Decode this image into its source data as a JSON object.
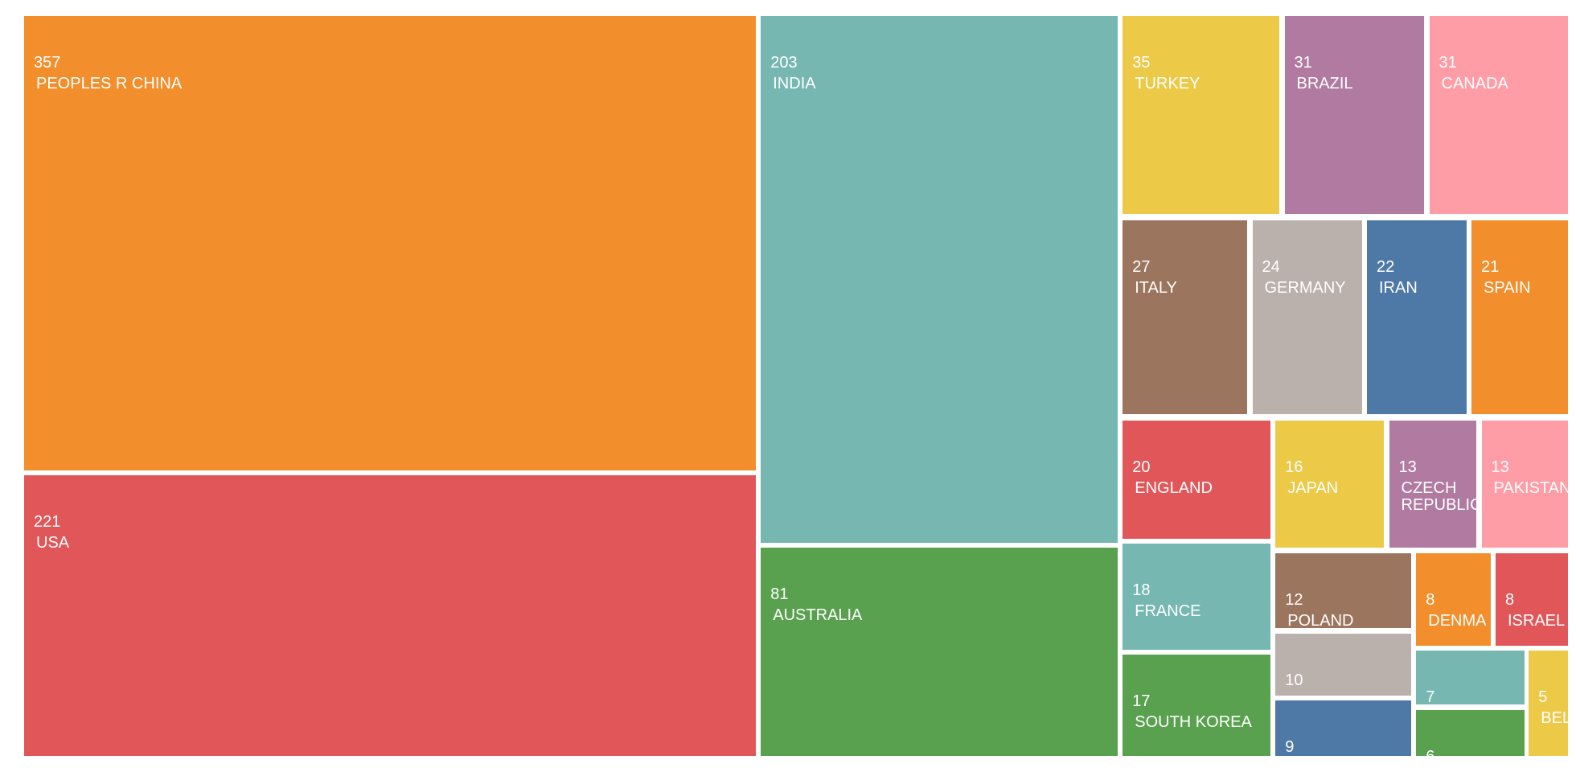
{
  "chart_data": {
    "type": "treemap",
    "categories": [
      "PEOPLES R CHINA",
      "USA",
      "INDIA",
      "AUSTRALIA",
      "TURKEY",
      "BRAZIL",
      "CANADA",
      "ITALY",
      "GERMANY",
      "IRAN",
      "SPAIN",
      "ENGLAND",
      "FRANCE",
      "SOUTH KOREA",
      "JAPAN",
      "CZECH REPUBLIC",
      "PAKISTAN",
      "POLAND",
      null,
      null,
      "DENMA",
      "ISRAEL",
      null,
      null,
      "BEL"
    ],
    "values": [
      357,
      221,
      203,
      81,
      35,
      31,
      31,
      27,
      24,
      22,
      21,
      20,
      18,
      17,
      16,
      13,
      13,
      12,
      10,
      9,
      8,
      8,
      7,
      6,
      5
    ],
    "colors": [
      "#f28e2b",
      "#e15759",
      "#76b7b2",
      "#59a14f",
      "#edc948",
      "#b07aa1",
      "#ff9da7",
      "#9c755f",
      "#bab0ac",
      "#4e79a7",
      "#f28e2b",
      "#e15759",
      "#76b7b2",
      "#59a14f",
      "#edc948",
      "#b07aa1",
      "#ff9da7",
      "#9c755f",
      "#bab0ac",
      "#4e79a7",
      "#f28e2b",
      "#e15759",
      "#76b7b2",
      "#59a14f",
      "#edc948"
    ]
  }
}
